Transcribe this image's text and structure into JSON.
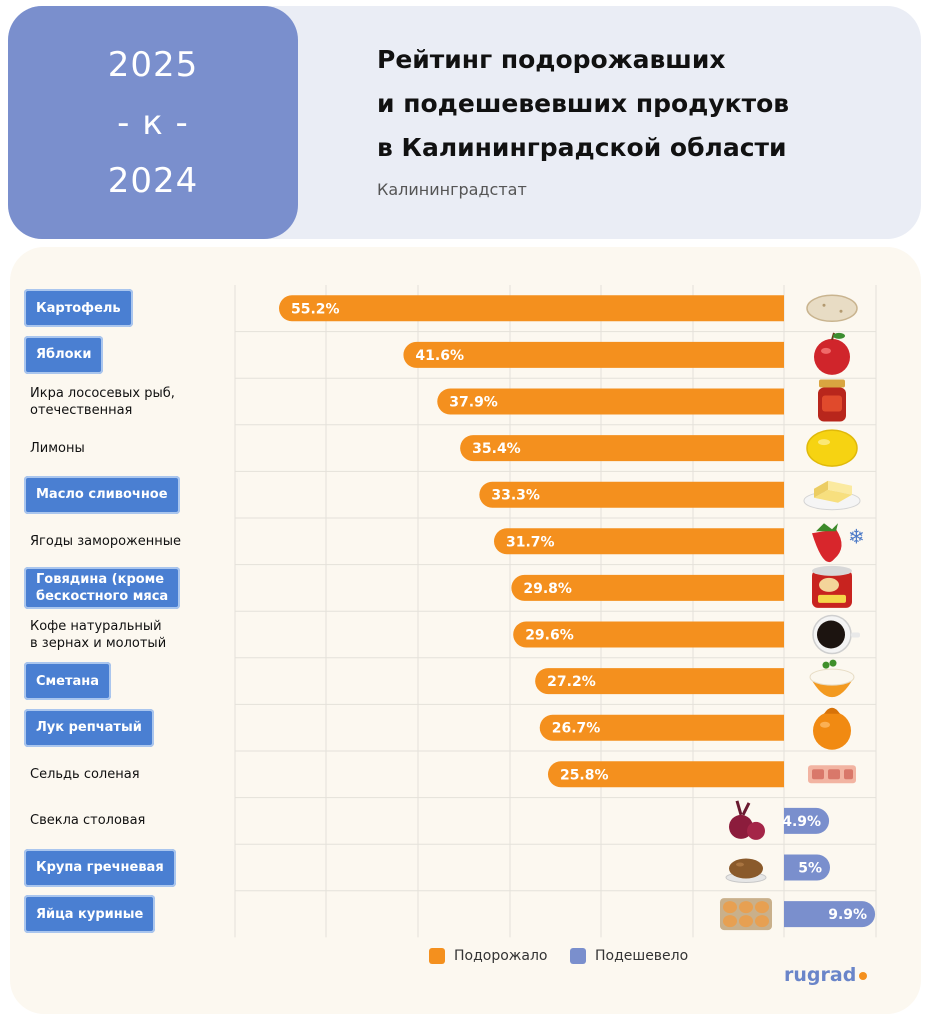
{
  "header": {
    "years": [
      "2025",
      "- к -",
      "2024"
    ],
    "title_lines": [
      "Рейтинг подорожавших",
      "и подешевевших продуктов",
      "в Калининградской области"
    ],
    "source": "Калининградстат"
  },
  "chart_data": {
    "type": "bar",
    "orientation": "horizontal",
    "categories": [
      "Картофель",
      "Яблоки",
      "Икра лососевых рыб, отечественная",
      "Лимоны",
      "Масло сливочное",
      "Ягоды замороженные",
      "Говядина (кроме бескостного мяса",
      "Кофе натуральный в зернах и молотый",
      "Сметана",
      "Лук репчатый",
      "Сельдь соленая",
      "Свекла столовая",
      "Крупа гречневая",
      "Яйца куриные"
    ],
    "category_lines": [
      [
        "Картофель"
      ],
      [
        "Яблоки"
      ],
      [
        "Икра лососевых рыб,",
        "отечественная"
      ],
      [
        "Лимоны"
      ],
      [
        "Масло сливочное"
      ],
      [
        "Ягоды замороженные"
      ],
      [
        "Говядина (кроме",
        "бескостного мяса"
      ],
      [
        "Кофе натуральный",
        "в зернах и молотый"
      ],
      [
        "Сметана"
      ],
      [
        "Лук репчатый"
      ],
      [
        "Сельдь соленая"
      ],
      [
        "Свекла столовая"
      ],
      [
        "Крупа гречневая"
      ],
      [
        "Яйца куриные"
      ]
    ],
    "highlighted": [
      true,
      true,
      false,
      false,
      true,
      false,
      true,
      false,
      true,
      true,
      false,
      false,
      true,
      true
    ],
    "values": [
      55.2,
      41.6,
      37.9,
      35.4,
      33.3,
      31.7,
      29.8,
      29.6,
      27.2,
      26.7,
      25.8,
      4.9,
      5,
      9.9
    ],
    "value_labels": [
      "55.2%",
      "41.6%",
      "37.9%",
      "35.4%",
      "33.3%",
      "31.7%",
      "29.8%",
      "29.6%",
      "27.2%",
      "26.7%",
      "25.8%",
      "4.9%",
      "5%",
      "9.9%"
    ],
    "direction": [
      "up",
      "up",
      "up",
      "up",
      "up",
      "up",
      "up",
      "up",
      "up",
      "up",
      "up",
      "down",
      "down",
      "down"
    ],
    "icons": [
      "potato-icon",
      "apple-icon",
      "caviar-jar-icon",
      "lemon-icon",
      "butter-icon",
      "strawberry-icon",
      "canned-meat-icon",
      "coffee-cup-icon",
      "sour-cream-icon",
      "onion-icon",
      "herring-icon",
      "beet-icon",
      "buckwheat-icon",
      "eggs-icon"
    ],
    "legend": [
      {
        "label": "Подорожало",
        "color": "#f4901e"
      },
      {
        "label": "Подешевело",
        "color": "#7a8fcd"
      }
    ],
    "grid": true
  },
  "colors": {
    "up": "#f4901e",
    "down": "#7a8fcd",
    "highlight": "#4a7fd2"
  },
  "logo": {
    "text": "rugrad"
  }
}
